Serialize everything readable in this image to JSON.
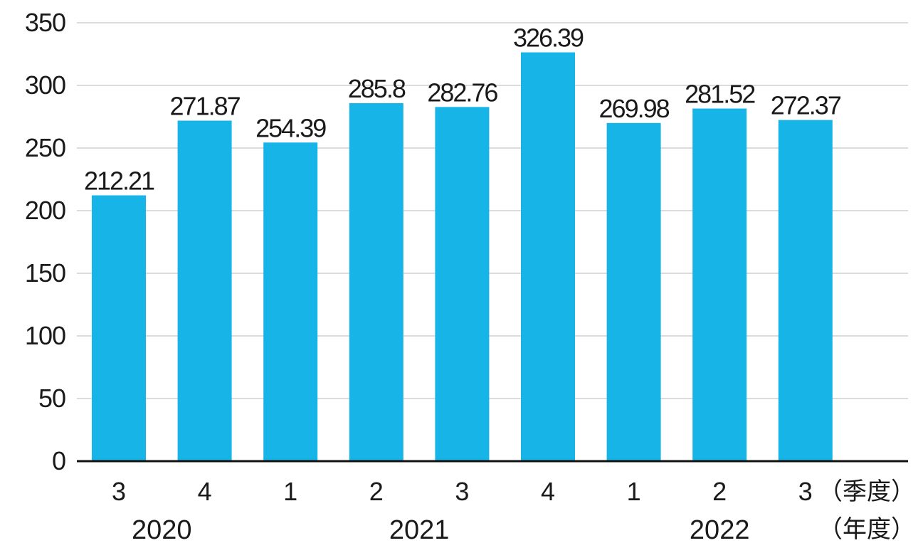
{
  "chart_data": {
    "type": "bar",
    "categories": [
      "3",
      "4",
      "1",
      "2",
      "3",
      "4",
      "1",
      "2",
      "3"
    ],
    "values": [
      212.21,
      271.87,
      254.39,
      285.8,
      282.76,
      326.39,
      269.98,
      281.52,
      272.37
    ],
    "value_labels": [
      "212.21",
      "271.87",
      "254.39",
      "285.8",
      "282.76",
      "326.39",
      "269.98",
      "281.52",
      "272.37"
    ],
    "years": [
      {
        "label": "2020",
        "categories": [
          0,
          1
        ]
      },
      {
        "label": "2021",
        "categories": [
          2,
          3,
          4,
          5
        ]
      },
      {
        "label": "2022",
        "categories": [
          6,
          7,
          8
        ]
      }
    ],
    "x_unit_label": "（季度）",
    "year_unit_label": "（年度）",
    "ylim": [
      0,
      350
    ],
    "yticks": [
      0,
      50,
      100,
      150,
      200,
      250,
      300,
      350
    ],
    "grid": true,
    "bar_color": "#17b4e8",
    "grid_color": "#cfcfcf",
    "axis_color": "#111111",
    "text_color": "#1a1a1a",
    "title": "",
    "xlabel": "",
    "ylabel": ""
  }
}
